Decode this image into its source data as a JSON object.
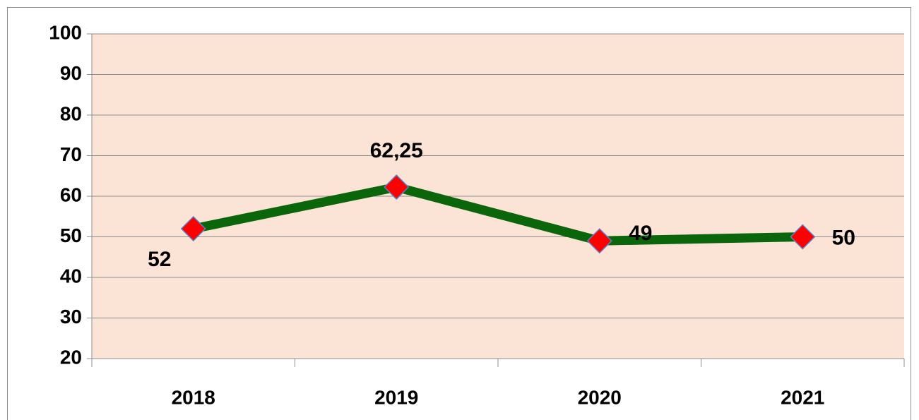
{
  "chart_data": {
    "type": "line",
    "categories": [
      "2018",
      "2019",
      "2020",
      "2021"
    ],
    "values": [
      52,
      62.25,
      49,
      50
    ],
    "value_labels": [
      "52",
      "62,25",
      "49",
      "50"
    ],
    "color": "#0b650b",
    "marker_color": "#ff0000",
    "ylim": [
      20,
      100
    ],
    "yticks": [
      20,
      30,
      40,
      50,
      60,
      70,
      80,
      90,
      100
    ],
    "grid": true
  }
}
